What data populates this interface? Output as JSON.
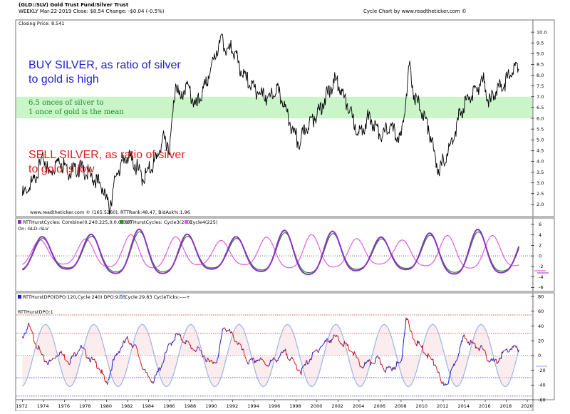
{
  "header": {
    "title": "(GLD::SLV) Gold Trust Fund/Silver Trust",
    "subtitle": "WEEKLY   Mar-22-2019  Close: $8.54  Change: -$0.04  (-0.5%)",
    "source": "Cycle Chart by www.readtheticker.com ©"
  },
  "colors": {
    "price": "#000000",
    "band": "#c9f5c9",
    "combine": "#8b2fc9",
    "cycle3": "#2e8b2e",
    "cycle4": "#e05ce0",
    "dpo_up": "#1a1ad6",
    "dpo_down": "#e01010",
    "cycle_line": "#9ab3e8",
    "ref_red": "#d42020",
    "ref_blue": "#2020c0"
  },
  "chart_data": [
    {
      "type": "line",
      "panel": "price",
      "label": "Closing Price: 8.541",
      "footer": "www.readtheticker.com © (165.5260), RTTRank:48.47, BidAsk%:1.96",
      "ylim": [
        1.5,
        10.5
      ],
      "yticks": [
        "10.0",
        "9.5",
        "9.0",
        "8.5",
        "8.0",
        "7.5",
        "7.0",
        "6.5",
        "6.0",
        "5.5",
        "5.0",
        "4.5",
        "4.0",
        "3.5",
        "3.0",
        "2.5",
        "2.0"
      ],
      "band": [
        6.0,
        7.0
      ],
      "x": [
        1972.0,
        1973.0,
        1974.0,
        1974.5,
        1975.5,
        1976.5,
        1977.5,
        1978.5,
        1979.5,
        1980.0,
        1980.3,
        1981.0,
        1982.0,
        1982.6,
        1983.5,
        1984.5,
        1985.5,
        1986.0,
        1986.6,
        1987.0,
        1987.6,
        1988.5,
        1989.5,
        1990.3,
        1991.0,
        1991.4,
        1992.0,
        1992.8,
        1993.6,
        1994.5,
        1995.5,
        1996.2,
        1997.0,
        1997.7,
        1998.3,
        1999.0,
        2000.0,
        2001.0,
        2001.8,
        2002.5,
        2003.2,
        2004.0,
        2004.8,
        2005.5,
        2006.2,
        2007.0,
        2007.5,
        2008.0,
        2008.5,
        2008.8,
        2009.2,
        2010.0,
        2010.6,
        2011.3,
        2011.6,
        2012.3,
        2013.0,
        2013.5,
        2014.2,
        2015.0,
        2015.8,
        2016.4,
        2017.0,
        2017.8,
        2018.4,
        2019.0,
        2019.2
      ],
      "values": [
        2.4,
        3.0,
        4.2,
        3.4,
        4.1,
        3.5,
        3.7,
        3.3,
        2.9,
        2.2,
        1.9,
        3.5,
        4.3,
        3.9,
        3.2,
        3.9,
        5.1,
        4.6,
        7.8,
        6.8,
        7.6,
        6.5,
        7.6,
        8.9,
        9.8,
        9.0,
        9.3,
        8.2,
        7.6,
        7.2,
        6.9,
        7.4,
        6.4,
        5.4,
        4.8,
        5.6,
        6.2,
        7.1,
        7.8,
        7.1,
        6.2,
        5.2,
        6.0,
        5.7,
        5.1,
        5.7,
        5.2,
        5.1,
        7.0,
        8.5,
        7.1,
        6.3,
        5.6,
        4.0,
        3.6,
        4.2,
        5.2,
        6.1,
        6.8,
        7.3,
        7.8,
        6.7,
        7.3,
        7.6,
        8.2,
        8.4,
        8.54
      ],
      "annotations": [
        {
          "text": "BUY SILVER, as ratio of silver",
          "color": "blue"
        },
        {
          "text": "to gold is high",
          "color": "blue"
        },
        {
          "text": "6.5 onces of silver to",
          "color": "green"
        },
        {
          "text": "1 once of gold is the mean",
          "color": "green"
        },
        {
          "text": "SELL SILVER, as ratio of silver",
          "color": "red"
        },
        {
          "text": "to gold is low",
          "color": "red"
        }
      ]
    },
    {
      "type": "line",
      "panel": "cycles",
      "legend": [
        "RTTHurstCycles: Combine(0,240,225,0,0,0,0,0)",
        "RTTHurstCycles: Cycle3(240)",
        "Cycle4(225)"
      ],
      "label": "On: GLD::SLV",
      "ylim": [
        -6.5,
        6.8
      ],
      "yticks": [
        "6",
        "4",
        "2",
        "0",
        "-2",
        "-4",
        "-6"
      ],
      "x_start": 1972.0,
      "x_end": 2019.2,
      "series": [
        {
          "name": "Combine",
          "period_years": 4.6,
          "phase": 1973.9,
          "amp": 4.3,
          "offset": 0.0
        },
        {
          "name": "Cycle3(240)",
          "period_years": 4.6,
          "phase": 1973.95,
          "amp": 3.9,
          "offset": 0.0
        },
        {
          "name": "Cycle4(225)",
          "period_years": 4.3,
          "phase": 1973.7,
          "amp": 3.2,
          "offset": 0.3
        }
      ]
    },
    {
      "type": "line",
      "panel": "dpo",
      "legend": [
        "RTTHurstDPO(DPO:120,Cycle:240) DPO:9.06",
        "Cycle:29.83 CycleTicks:----+"
      ],
      "label": "RTTHurstDPO:1",
      "ylim": [
        -58,
        82
      ],
      "yticks": [
        "80",
        "60",
        "40",
        "20",
        "0",
        "-20",
        "-40",
        "-60"
      ],
      "reference_lines": {
        "red": [
          55,
          30
        ],
        "blue": [
          -30,
          -55
        ]
      },
      "x_ticks": [
        "1972",
        "1974",
        "1976",
        "1978",
        "1980",
        "1982",
        "1984",
        "1986",
        "1988",
        "1990",
        "1992",
        "1994",
        "1996",
        "1998",
        "2000",
        "2002",
        "2004",
        "2006",
        "2008",
        "2010",
        "2012",
        "2014",
        "2016",
        "2018",
        "2020"
      ],
      "dpo_x": [
        1972.0,
        1972.6,
        1973.2,
        1974.0,
        1974.6,
        1975.5,
        1976.5,
        1977.5,
        1978.5,
        1979.3,
        1980.0,
        1980.6,
        1981.3,
        1982.0,
        1982.8,
        1983.7,
        1984.5,
        1985.3,
        1986.0,
        1986.7,
        1987.4,
        1988.2,
        1989.0,
        1989.8,
        1990.6,
        1991.1,
        1991.8,
        1992.6,
        1993.5,
        1994.4,
        1995.3,
        1996.1,
        1997.0,
        1997.8,
        1998.5,
        1999.3,
        2000.2,
        2001.0,
        2001.8,
        2002.6,
        2003.4,
        2004.2,
        2005.0,
        2005.8,
        2006.6,
        2007.3,
        2008.0,
        2008.5,
        2008.8,
        2009.3,
        2010.0,
        2010.8,
        2011.4,
        2011.8,
        2012.5,
        2013.2,
        2014.0,
        2014.8,
        2015.6,
        2016.3,
        2017.0,
        2017.8,
        2018.5,
        2019.2
      ],
      "dpo": [
        25,
        40,
        20,
        -5,
        -10,
        5,
        -8,
        12,
        -5,
        -15,
        -40,
        -10,
        10,
        22,
        10,
        -25,
        -35,
        -10,
        15,
        28,
        20,
        10,
        5,
        -10,
        -5,
        40,
        30,
        15,
        -10,
        -5,
        -12,
        -5,
        5,
        -10,
        -22,
        -5,
        10,
        20,
        25,
        15,
        5,
        -15,
        -10,
        -5,
        -20,
        -15,
        -10,
        55,
        35,
        20,
        10,
        -5,
        -15,
        -40,
        -35,
        -5,
        25,
        15,
        10,
        -5,
        -10,
        5,
        10,
        9
      ],
      "cycle_period_years": 4.6,
      "cycle_phase": 1974.2,
      "cycle_amp": 42
    }
  ]
}
